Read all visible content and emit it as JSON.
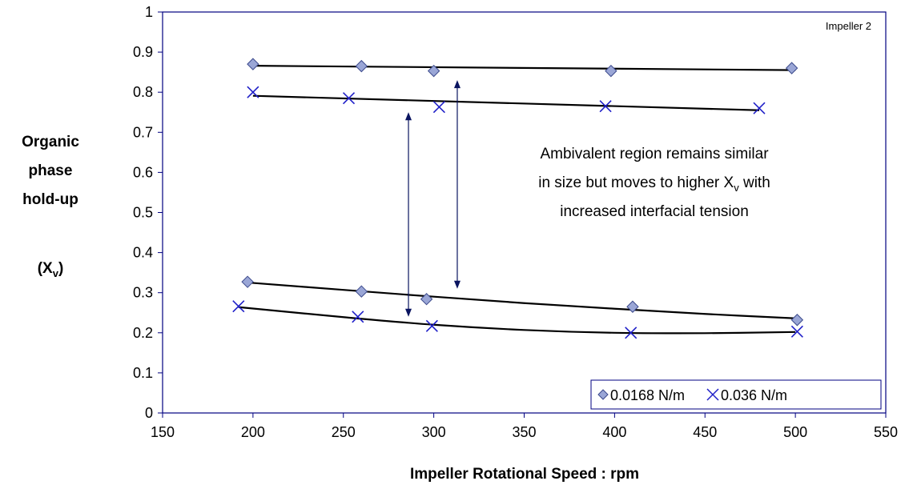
{
  "chart_data": {
    "type": "scatter",
    "panel_label": "Impeller 2",
    "xlabel": "Impeller Rotational Speed : rpm",
    "ylabel_lines": [
      "Organic",
      "phase",
      "hold-up"
    ],
    "ylabel_symbol": {
      "base": "(X",
      "sub": "v",
      "close": ")"
    },
    "xlim": [
      150,
      550
    ],
    "ylim": [
      0,
      1
    ],
    "x_ticks": [
      150,
      200,
      250,
      300,
      350,
      400,
      450,
      500,
      550
    ],
    "y_ticks": [
      0,
      0.1,
      0.2,
      0.3,
      0.4,
      0.5,
      0.6,
      0.7,
      0.8,
      0.9,
      1
    ],
    "x_tick_labels": [
      "150",
      "200",
      "250",
      "300",
      "350",
      "400",
      "450",
      "500",
      "550"
    ],
    "y_tick_labels": [
      "0",
      "0.1",
      "0.2",
      "0.3",
      "0.4",
      "0.5",
      "0.6",
      "0.7",
      "0.8",
      "0.9",
      "1"
    ],
    "grid": false,
    "legend_position": "bottom-right",
    "series": [
      {
        "name": "0.0168 N/m",
        "marker": "diamond",
        "color": "#9aa6d6",
        "edge_color": "#3c4a8c",
        "groups": [
          {
            "x": [
              200,
              260,
              300,
              398,
              498
            ],
            "y": [
              0.87,
              0.865,
              0.853,
              0.853,
              0.86
            ]
          },
          {
            "x": [
              197,
              260,
              296,
              410,
              501
            ],
            "y": [
              0.327,
              0.303,
              0.284,
              0.265,
              0.232
            ]
          }
        ]
      },
      {
        "name": "0.036 N/m",
        "marker": "x",
        "color": "#1f1fc8",
        "groups": [
          {
            "x": [
              200,
              253,
              303,
              395,
              480
            ],
            "y": [
              0.8,
              0.785,
              0.763,
              0.765,
              0.76
            ]
          },
          {
            "x": [
              192,
              258,
              299,
              409,
              501
            ],
            "y": [
              0.266,
              0.24,
              0.217,
              0.2,
              0.203
            ]
          }
        ]
      }
    ],
    "trendlines": [
      {
        "x": [
          200,
          500
        ],
        "y": [
          0.866,
          0.855
        ]
      },
      {
        "x": [
          200,
          480
        ],
        "y": [
          0.791,
          0.755
        ]
      },
      {
        "x": [
          198,
          250,
          300,
          350,
          400,
          450,
          500
        ],
        "y": [
          0.325,
          0.307,
          0.29,
          0.274,
          0.26,
          0.247,
          0.236
        ]
      },
      {
        "x": [
          192,
          250,
          300,
          350,
          400,
          450,
          500
        ],
        "y": [
          0.264,
          0.239,
          0.22,
          0.207,
          0.2,
          0.199,
          0.202
        ]
      }
    ],
    "arrows": [
      {
        "x": 286,
        "y_from": 0.24,
        "y_to": 0.75,
        "color": "#0a1460"
      },
      {
        "x": 313,
        "y_from": 0.31,
        "y_to": 0.83,
        "color": "#0a1460"
      }
    ],
    "annotation": {
      "lines": [
        {
          "text": "Ambivalent region remains similar"
        },
        {
          "text": "in size but moves to higher X",
          "sub": "v",
          "after": " with"
        },
        {
          "text": "increased interfacial tension"
        }
      ]
    }
  }
}
